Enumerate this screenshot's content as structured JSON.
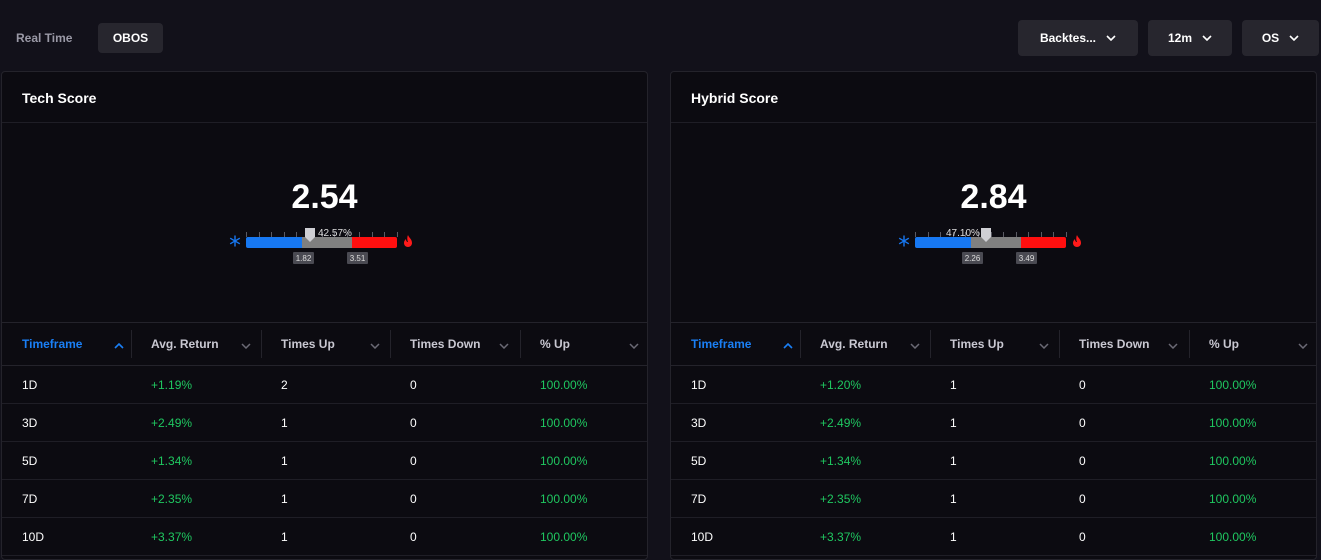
{
  "topbar": {
    "realtime_label": "Real Time",
    "obos_label": "OBOS",
    "dropdowns": [
      {
        "label": "Backtes..."
      },
      {
        "label": "12m"
      },
      {
        "label": "OS"
      }
    ]
  },
  "colors": {
    "accent": "#1a7ff5",
    "positive": "#1fc760",
    "cold": "#1778f2",
    "hot": "#ff0f0f",
    "neutral": "#808080"
  },
  "icons": {
    "cold": "snowflake-icon",
    "hot": "flame-icon",
    "sort_asc": "chevron-up-icon",
    "sort": "chevron-down-icon"
  },
  "columns": [
    {
      "label": "Timeframe",
      "sort": "asc"
    },
    {
      "label": "Avg. Return"
    },
    {
      "label": "Times Up"
    },
    {
      "label": "Times Down"
    },
    {
      "label": "% Up"
    }
  ],
  "panels": [
    {
      "title": "Tech Score",
      "score": "2.54",
      "gauge": {
        "percent_label": "42.57%",
        "percent": 42.57,
        "low_threshold": "1.82",
        "high_threshold": "3.51"
      },
      "rows": [
        {
          "timeframe": "1D",
          "avg_return": "+1.19%",
          "times_up": "2",
          "times_down": "0",
          "pct_up": "100.00%"
        },
        {
          "timeframe": "3D",
          "avg_return": "+2.49%",
          "times_up": "1",
          "times_down": "0",
          "pct_up": "100.00%"
        },
        {
          "timeframe": "5D",
          "avg_return": "+1.34%",
          "times_up": "1",
          "times_down": "0",
          "pct_up": "100.00%"
        },
        {
          "timeframe": "7D",
          "avg_return": "+2.35%",
          "times_up": "1",
          "times_down": "0",
          "pct_up": "100.00%"
        },
        {
          "timeframe": "10D",
          "avg_return": "+3.37%",
          "times_up": "1",
          "times_down": "0",
          "pct_up": "100.00%"
        }
      ]
    },
    {
      "title": "Hybrid Score",
      "score": "2.84",
      "gauge": {
        "percent_label": "47.10%",
        "percent": 47.1,
        "low_threshold": "2.26",
        "high_threshold": "3.49"
      },
      "rows": [
        {
          "timeframe": "1D",
          "avg_return": "+1.20%",
          "times_up": "1",
          "times_down": "0",
          "pct_up": "100.00%"
        },
        {
          "timeframe": "3D",
          "avg_return": "+2.49%",
          "times_up": "1",
          "times_down": "0",
          "pct_up": "100.00%"
        },
        {
          "timeframe": "5D",
          "avg_return": "+1.34%",
          "times_up": "1",
          "times_down": "0",
          "pct_up": "100.00%"
        },
        {
          "timeframe": "7D",
          "avg_return": "+2.35%",
          "times_up": "1",
          "times_down": "0",
          "pct_up": "100.00%"
        },
        {
          "timeframe": "10D",
          "avg_return": "+3.37%",
          "times_up": "1",
          "times_down": "0",
          "pct_up": "100.00%"
        }
      ]
    }
  ]
}
